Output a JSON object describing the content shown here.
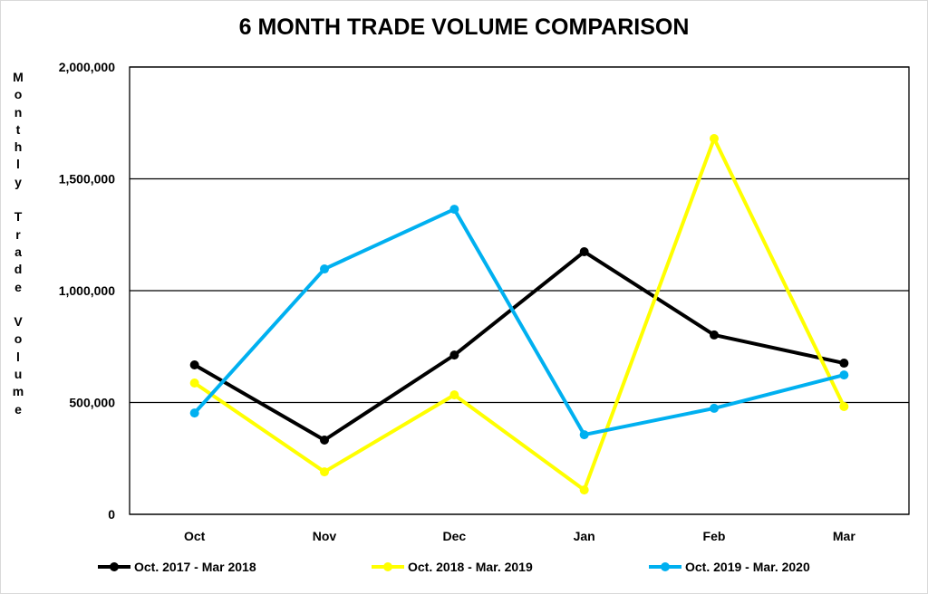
{
  "chart_data": {
    "type": "line",
    "title": "6 MONTH TRADE VOLUME COMPARISON",
    "xlabel": "",
    "ylabel": "Monthly Trade Volume",
    "categories": [
      "Oct",
      "Nov",
      "Dec",
      "Jan",
      "Feb",
      "Mar"
    ],
    "ylim": [
      0,
      2000000
    ],
    "yticks": [
      0,
      500000,
      1000000,
      1500000,
      2000000
    ],
    "ytick_labels": [
      "0",
      "500,000",
      "1,000,000",
      "1,500,000",
      "2,000,000"
    ],
    "grid": true,
    "legend_position": "bottom",
    "series": [
      {
        "name": "Oct. 2017 - Mar 2018",
        "color": "#000000",
        "values": [
          668000,
          332000,
          712000,
          1174000,
          802000,
          676000
        ]
      },
      {
        "name": "Oct. 2018 - Mar. 2019",
        "color": "#FFFF00",
        "values": [
          587000,
          190000,
          534000,
          109000,
          1680000,
          482000
        ]
      },
      {
        "name": "Oct. 2019 - Mar. 2020",
        "color": "#00B0F0",
        "values": [
          453000,
          1097000,
          1364000,
          356000,
          474000,
          623000
        ]
      }
    ]
  }
}
